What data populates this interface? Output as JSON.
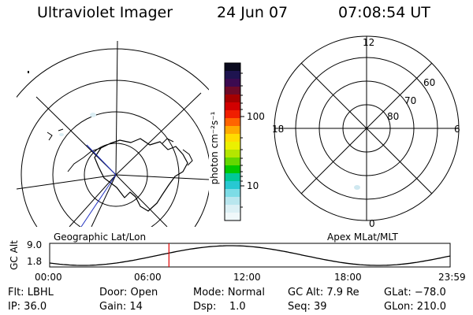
{
  "header": {
    "title": "Ultraviolet Imager",
    "date": "24 Jun 07",
    "time": "07:08:54 UT"
  },
  "left_panel": {
    "caption": "Geographic Lat/Lon"
  },
  "right_panel": {
    "caption": "Apex MLat/MLT",
    "mlt_labels": {
      "top": "12",
      "right": "6",
      "bottom": "0",
      "left": "18"
    },
    "lat_labels": [
      "60",
      "70",
      "80"
    ]
  },
  "colorbar": {
    "unit_label": "photon cm⁻²s⁻¹",
    "tick_labels": [
      "100",
      "10"
    ],
    "scale": "log",
    "colors": [
      "#0a0a1e",
      "#1e1450",
      "#3c0a50",
      "#6e0a28",
      "#a50000",
      "#d20000",
      "#f01e00",
      "#ff6400",
      "#ffaa00",
      "#ffdc00",
      "#ebf000",
      "#b4e600",
      "#64d700",
      "#00c800",
      "#00c896",
      "#28c8d2",
      "#7ddce6",
      "#b9e6ee",
      "#dcf0f5",
      "#f0f8fa"
    ]
  },
  "altitude_plot": {
    "ylabel": "GC Alt",
    "y_ticks": [
      "9.0",
      "1.8"
    ],
    "x_ticks": [
      "00:00",
      "06:00",
      "12:00",
      "18:00",
      "23:59"
    ],
    "marker_time_hours": 7.15,
    "marker_color": "#e00000"
  },
  "status": {
    "rows": [
      [
        "Flt: LBHL",
        "Door: Open",
        "Mode: Normal",
        "GC Alt: 7.9 Re",
        "GLat: −78.0"
      ],
      [
        "IP: 36.0",
        "Gain: 14",
        "Dsp:    1.0",
        "Seq: 39",
        "GLon: 210.0"
      ]
    ]
  }
}
